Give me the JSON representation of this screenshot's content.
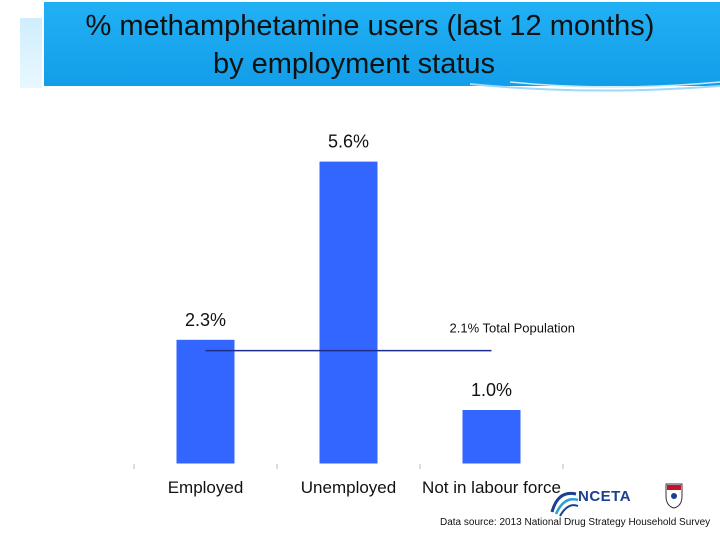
{
  "title": {
    "line1": "% methamphetamine users (last 12 months)",
    "line2": "by employment status"
  },
  "colors": {
    "banner": "#1aa7f0",
    "bar": "#3366ff",
    "reference_line": "#1f2d8a"
  },
  "chart_data": {
    "type": "bar",
    "categories": [
      "Employed",
      "Unemployed",
      "Not in labour force"
    ],
    "values": [
      2.3,
      5.6,
      1.0
    ],
    "value_labels": [
      "2.3%",
      "5.6%",
      "1.0%"
    ],
    "ylim": [
      0,
      6.0
    ],
    "grid": false,
    "legend": "none",
    "reference_line": {
      "value": 2.1,
      "label": "2.1% Total Population"
    }
  },
  "source": "Data source: 2013 National Drug Strategy Household Survey",
  "logos": {
    "nceta": "NCETA",
    "nceta_icon": "nceta-swirl-icon",
    "university_icon": "university-crest-icon"
  }
}
